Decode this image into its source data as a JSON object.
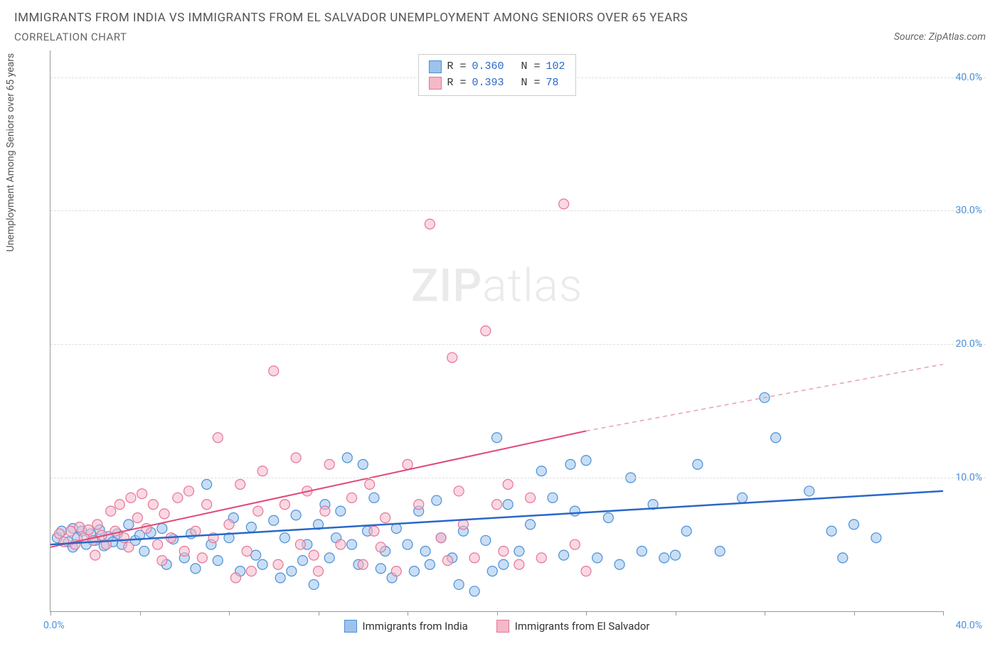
{
  "title": "IMMIGRANTS FROM INDIA VS IMMIGRANTS FROM EL SALVADOR UNEMPLOYMENT AMONG SENIORS OVER 65 YEARS",
  "subtitle": "CORRELATION CHART",
  "source_label": "Source:",
  "source_value": "ZipAtlas.com",
  "y_axis_label": "Unemployment Among Seniors over 65 years",
  "watermark_a": "ZIP",
  "watermark_b": "atlas",
  "chart": {
    "type": "scatter",
    "xlim": [
      0,
      40
    ],
    "ylim": [
      0,
      42
    ],
    "x_ticks": [
      0,
      4,
      8,
      12,
      16,
      20,
      24,
      28,
      32,
      36,
      40
    ],
    "y_gridlines": [
      10,
      20,
      30,
      40
    ],
    "y_tick_labels": [
      "10.0%",
      "20.0%",
      "30.0%",
      "40.0%"
    ],
    "x_zero_label": "0.0%",
    "x_max_label": "40.0%",
    "background_color": "#ffffff",
    "grid_color": "#dddddd",
    "axis_color": "#999999",
    "marker_radius": 7,
    "marker_opacity": 0.55,
    "series": [
      {
        "name": "Immigrants from India",
        "color_fill": "#9dc3eb",
        "color_stroke": "#4a90d9",
        "r_value": "0.360",
        "n_value": "102",
        "trend_line": {
          "x1": 0,
          "y1": 5.0,
          "x2": 40,
          "y2": 9.0,
          "color": "#2968c8",
          "width": 2.5
        },
        "points": [
          [
            0.3,
            5.5
          ],
          [
            0.5,
            6.0
          ],
          [
            0.8,
            5.2
          ],
          [
            1.0,
            6.2
          ],
          [
            1.0,
            4.8
          ],
          [
            1.2,
            5.5
          ],
          [
            1.4,
            6.0
          ],
          [
            1.6,
            5.0
          ],
          [
            1.8,
            5.8
          ],
          [
            2.0,
            5.3
          ],
          [
            2.2,
            6.1
          ],
          [
            2.4,
            4.9
          ],
          [
            2.6,
            5.6
          ],
          [
            2.8,
            5.2
          ],
          [
            3.0,
            5.8
          ],
          [
            3.2,
            5.0
          ],
          [
            3.5,
            6.5
          ],
          [
            3.8,
            5.3
          ],
          [
            4.0,
            5.7
          ],
          [
            4.2,
            4.5
          ],
          [
            4.5,
            5.9
          ],
          [
            5.0,
            6.2
          ],
          [
            5.2,
            3.5
          ],
          [
            5.5,
            5.4
          ],
          [
            6.0,
            4.0
          ],
          [
            6.3,
            5.8
          ],
          [
            6.5,
            3.2
          ],
          [
            7.0,
            9.5
          ],
          [
            7.2,
            5.0
          ],
          [
            7.5,
            3.8
          ],
          [
            8.0,
            5.5
          ],
          [
            8.2,
            7.0
          ],
          [
            8.5,
            3.0
          ],
          [
            9.0,
            6.3
          ],
          [
            9.2,
            4.2
          ],
          [
            9.5,
            3.5
          ],
          [
            10.0,
            6.8
          ],
          [
            10.3,
            2.5
          ],
          [
            10.5,
            5.5
          ],
          [
            10.8,
            3.0
          ],
          [
            11.0,
            7.2
          ],
          [
            11.5,
            5.0
          ],
          [
            11.8,
            2.0
          ],
          [
            12.0,
            6.5
          ],
          [
            12.3,
            8.0
          ],
          [
            12.5,
            4.0
          ],
          [
            13.0,
            7.5
          ],
          [
            13.3,
            11.5
          ],
          [
            13.5,
            5.0
          ],
          [
            13.8,
            3.5
          ],
          [
            14.0,
            11.0
          ],
          [
            14.2,
            6.0
          ],
          [
            14.5,
            8.5
          ],
          [
            15.0,
            4.5
          ],
          [
            15.3,
            2.5
          ],
          [
            15.5,
            6.2
          ],
          [
            16.0,
            5.0
          ],
          [
            16.3,
            3.0
          ],
          [
            16.5,
            7.5
          ],
          [
            17.0,
            3.5
          ],
          [
            17.3,
            8.3
          ],
          [
            17.5,
            5.5
          ],
          [
            18.0,
            4.0
          ],
          [
            18.3,
            2.0
          ],
          [
            18.5,
            6.0
          ],
          [
            19.0,
            1.5
          ],
          [
            19.5,
            5.3
          ],
          [
            20.0,
            13.0
          ],
          [
            20.3,
            3.5
          ],
          [
            20.5,
            8.0
          ],
          [
            21.0,
            4.5
          ],
          [
            21.5,
            6.5
          ],
          [
            22.0,
            10.5
          ],
          [
            22.5,
            8.5
          ],
          [
            23.0,
            4.2
          ],
          [
            23.3,
            11.0
          ],
          [
            23.5,
            7.5
          ],
          [
            24.0,
            11.3
          ],
          [
            24.5,
            4.0
          ],
          [
            25.0,
            7.0
          ],
          [
            25.5,
            3.5
          ],
          [
            26.0,
            10.0
          ],
          [
            26.5,
            4.5
          ],
          [
            27.0,
            8.0
          ],
          [
            27.5,
            4.0
          ],
          [
            28.0,
            4.2
          ],
          [
            29.0,
            11.0
          ],
          [
            30.0,
            4.5
          ],
          [
            31.0,
            8.5
          ],
          [
            32.0,
            16.0
          ],
          [
            32.5,
            13.0
          ],
          [
            34.0,
            9.0
          ],
          [
            35.0,
            6.0
          ],
          [
            36.0,
            6.5
          ],
          [
            35.5,
            4.0
          ],
          [
            37.0,
            5.5
          ],
          [
            28.5,
            6.0
          ],
          [
            19.8,
            3.0
          ],
          [
            16.8,
            4.5
          ],
          [
            14.8,
            3.2
          ],
          [
            12.8,
            5.5
          ],
          [
            11.3,
            3.8
          ]
        ]
      },
      {
        "name": "Immigrants from El Salvador",
        "color_fill": "#f5b8c8",
        "color_stroke": "#e57598",
        "r_value": "0.393",
        "n_value": " 78",
        "trend_line_solid": {
          "x1": 0,
          "y1": 4.8,
          "x2": 24,
          "y2": 13.5,
          "color": "#e04878",
          "width": 2
        },
        "trend_line_dash": {
          "x1": 24,
          "y1": 13.5,
          "x2": 40,
          "y2": 18.5,
          "color": "#e8a0b8",
          "width": 1.5
        },
        "points": [
          [
            0.4,
            5.8
          ],
          [
            0.6,
            5.2
          ],
          [
            0.9,
            6.0
          ],
          [
            1.1,
            5.0
          ],
          [
            1.3,
            6.3
          ],
          [
            1.5,
            5.5
          ],
          [
            1.7,
            6.1
          ],
          [
            1.9,
            5.3
          ],
          [
            2.1,
            6.5
          ],
          [
            2.3,
            5.7
          ],
          [
            2.5,
            5.0
          ],
          [
            2.7,
            7.5
          ],
          [
            2.9,
            6.0
          ],
          [
            3.1,
            8.0
          ],
          [
            3.3,
            5.5
          ],
          [
            3.6,
            8.5
          ],
          [
            3.9,
            7.0
          ],
          [
            4.1,
            8.8
          ],
          [
            4.3,
            6.2
          ],
          [
            4.6,
            8.0
          ],
          [
            4.8,
            5.0
          ],
          [
            5.1,
            7.3
          ],
          [
            5.4,
            5.5
          ],
          [
            5.7,
            8.5
          ],
          [
            6.0,
            4.5
          ],
          [
            6.2,
            9.0
          ],
          [
            6.5,
            6.0
          ],
          [
            7.0,
            8.0
          ],
          [
            7.3,
            5.5
          ],
          [
            7.5,
            13.0
          ],
          [
            8.0,
            6.5
          ],
          [
            8.3,
            2.5
          ],
          [
            8.5,
            9.5
          ],
          [
            9.0,
            3.0
          ],
          [
            9.3,
            7.5
          ],
          [
            9.5,
            10.5
          ],
          [
            10.0,
            18.0
          ],
          [
            10.2,
            3.5
          ],
          [
            10.5,
            8.0
          ],
          [
            11.0,
            11.5
          ],
          [
            11.2,
            5.0
          ],
          [
            11.5,
            9.0
          ],
          [
            12.0,
            3.0
          ],
          [
            12.3,
            7.5
          ],
          [
            12.5,
            11.0
          ],
          [
            13.0,
            5.0
          ],
          [
            13.5,
            8.5
          ],
          [
            14.0,
            3.5
          ],
          [
            14.3,
            9.5
          ],
          [
            14.5,
            6.0
          ],
          [
            15.0,
            7.0
          ],
          [
            15.5,
            3.0
          ],
          [
            16.0,
            11.0
          ],
          [
            16.5,
            8.0
          ],
          [
            17.0,
            29.0
          ],
          [
            17.5,
            5.5
          ],
          [
            18.0,
            19.0
          ],
          [
            18.3,
            9.0
          ],
          [
            18.5,
            6.5
          ],
          [
            19.0,
            4.0
          ],
          [
            19.5,
            21.0
          ],
          [
            20.0,
            8.0
          ],
          [
            20.3,
            4.5
          ],
          [
            20.5,
            9.5
          ],
          [
            21.0,
            3.5
          ],
          [
            21.5,
            8.5
          ],
          [
            22.0,
            4.0
          ],
          [
            23.0,
            30.5
          ],
          [
            23.5,
            5.0
          ],
          [
            24.0,
            3.0
          ],
          [
            2.0,
            4.2
          ],
          [
            3.5,
            4.8
          ],
          [
            5.0,
            3.8
          ],
          [
            6.8,
            4.0
          ],
          [
            8.8,
            4.5
          ],
          [
            11.8,
            4.2
          ],
          [
            14.8,
            4.8
          ],
          [
            17.8,
            3.8
          ]
        ]
      }
    ]
  },
  "legend_box": {
    "r_label": "R =",
    "n_label": "N ="
  },
  "bottom_legend": {
    "s1": "Immigrants from India",
    "s2": "Immigrants from El Salvador"
  }
}
